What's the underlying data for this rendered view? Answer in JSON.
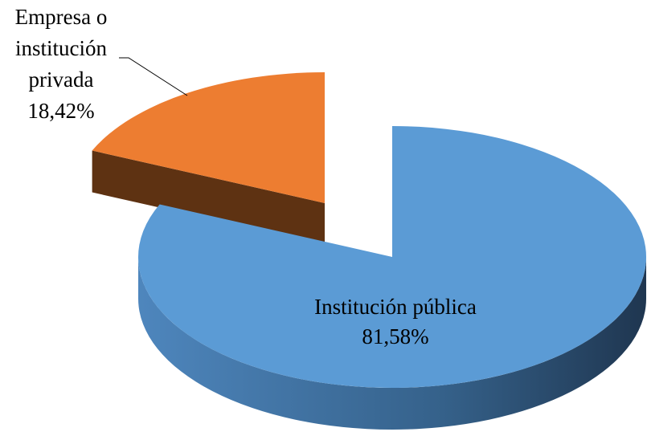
{
  "chart_data": {
    "type": "pie",
    "categories": [
      "Institución pública",
      "Empresa o institución privada"
    ],
    "values": [
      81.58,
      18.42
    ],
    "value_labels": [
      "81,58%",
      "18,42%"
    ],
    "colors": [
      "#5b9bd5",
      "#ed7d31"
    ]
  }
}
